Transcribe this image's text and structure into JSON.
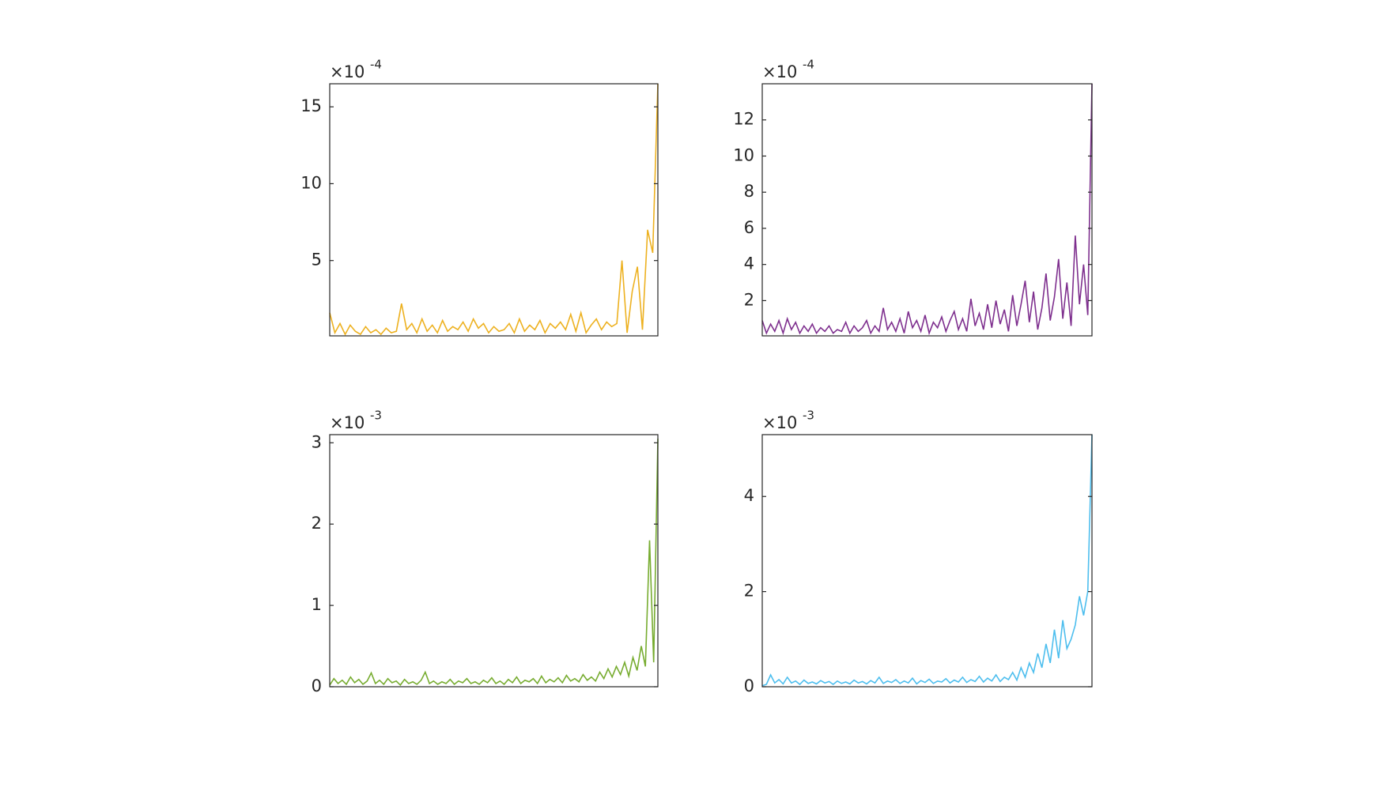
{
  "chart_data": [
    {
      "type": "line",
      "y_exponent_base": "×10",
      "y_exponent": "-4",
      "ylim": [
        0.1,
        16.5
      ],
      "yticks": [
        5,
        10,
        15
      ],
      "series": [
        {
          "color": "#EDB120",
          "values": [
            1.6,
            0.3,
            0.9,
            0.2,
            0.8,
            0.4,
            0.2,
            0.7,
            0.3,
            0.5,
            0.2,
            0.6,
            0.3,
            0.4,
            2.2,
            0.5,
            0.9,
            0.3,
            1.2,
            0.4,
            0.8,
            0.3,
            1.1,
            0.4,
            0.7,
            0.5,
            1.0,
            0.4,
            1.2,
            0.6,
            0.9,
            0.3,
            0.7,
            0.4,
            0.5,
            0.9,
            0.3,
            1.2,
            0.4,
            0.8,
            0.5,
            1.1,
            0.3,
            0.9,
            0.6,
            1.0,
            0.5,
            1.5,
            0.4,
            1.6,
            0.3,
            0.8,
            1.2,
            0.5,
            1.0,
            0.7,
            0.9,
            5.0,
            0.3,
            3.0,
            4.6,
            0.5,
            7.0,
            5.5,
            16.5
          ]
        }
      ]
    },
    {
      "type": "line",
      "y_exponent_base": "×10",
      "y_exponent": "-4",
      "ylim": [
        0.05,
        14
      ],
      "yticks": [
        2,
        4,
        6,
        8,
        10,
        12
      ],
      "series": [
        {
          "color": "#7E2F8E",
          "values": [
            0.9,
            0.2,
            0.7,
            0.3,
            0.9,
            0.2,
            1.0,
            0.4,
            0.8,
            0.2,
            0.6,
            0.3,
            0.7,
            0.2,
            0.5,
            0.3,
            0.6,
            0.2,
            0.4,
            0.3,
            0.8,
            0.2,
            0.6,
            0.3,
            0.5,
            0.9,
            0.2,
            0.6,
            0.3,
            1.6,
            0.4,
            0.8,
            0.3,
            1.0,
            0.2,
            1.4,
            0.5,
            0.9,
            0.3,
            1.2,
            0.2,
            0.8,
            0.5,
            1.1,
            0.3,
            0.9,
            1.4,
            0.4,
            1.0,
            0.3,
            2.1,
            0.6,
            1.3,
            0.4,
            1.8,
            0.5,
            2.0,
            0.7,
            1.5,
            0.3,
            2.3,
            0.6,
            1.8,
            3.1,
            0.8,
            2.5,
            0.4,
            1.6,
            3.5,
            0.9,
            2.2,
            4.3,
            1.0,
            3.0,
            0.6,
            5.6,
            1.8,
            4.0,
            1.2,
            14.0
          ]
        }
      ]
    },
    {
      "type": "line",
      "y_exponent_base": "×10",
      "y_exponent": "-3",
      "ylim": [
        0,
        3.1
      ],
      "yticks": [
        0,
        1,
        2,
        3
      ],
      "series": [
        {
          "color": "#77AC30",
          "values": [
            0.02,
            0.1,
            0.04,
            0.08,
            0.03,
            0.12,
            0.05,
            0.09,
            0.03,
            0.07,
            0.17,
            0.04,
            0.08,
            0.03,
            0.1,
            0.05,
            0.07,
            0.02,
            0.09,
            0.04,
            0.06,
            0.03,
            0.08,
            0.18,
            0.04,
            0.07,
            0.03,
            0.06,
            0.04,
            0.09,
            0.03,
            0.07,
            0.05,
            0.1,
            0.04,
            0.06,
            0.03,
            0.08,
            0.05,
            0.11,
            0.04,
            0.07,
            0.03,
            0.09,
            0.05,
            0.12,
            0.04,
            0.08,
            0.06,
            0.1,
            0.04,
            0.13,
            0.05,
            0.09,
            0.06,
            0.11,
            0.05,
            0.14,
            0.07,
            0.1,
            0.06,
            0.15,
            0.08,
            0.12,
            0.07,
            0.18,
            0.1,
            0.22,
            0.12,
            0.25,
            0.15,
            0.3,
            0.13,
            0.36,
            0.2,
            0.5,
            0.25,
            1.8,
            0.3,
            3.05
          ]
        }
      ]
    },
    {
      "type": "line",
      "y_exponent_base": "×10",
      "y_exponent": "-3",
      "ylim": [
        0,
        5.3
      ],
      "yticks": [
        0,
        2,
        4
      ],
      "series": [
        {
          "color": "#4DBEEE",
          "values": [
            0.02,
            0.05,
            0.25,
            0.08,
            0.15,
            0.06,
            0.2,
            0.08,
            0.12,
            0.05,
            0.14,
            0.07,
            0.1,
            0.06,
            0.13,
            0.08,
            0.11,
            0.05,
            0.12,
            0.07,
            0.1,
            0.06,
            0.14,
            0.08,
            0.11,
            0.06,
            0.13,
            0.08,
            0.2,
            0.07,
            0.12,
            0.09,
            0.15,
            0.07,
            0.12,
            0.08,
            0.18,
            0.06,
            0.13,
            0.09,
            0.16,
            0.07,
            0.12,
            0.1,
            0.17,
            0.08,
            0.14,
            0.1,
            0.2,
            0.09,
            0.15,
            0.11,
            0.22,
            0.1,
            0.18,
            0.12,
            0.25,
            0.11,
            0.2,
            0.15,
            0.3,
            0.14,
            0.4,
            0.2,
            0.5,
            0.3,
            0.7,
            0.4,
            0.9,
            0.5,
            1.2,
            0.6,
            1.4,
            0.8,
            1.0,
            1.3,
            1.9,
            1.5,
            2.0,
            5.3
          ]
        }
      ]
    }
  ]
}
